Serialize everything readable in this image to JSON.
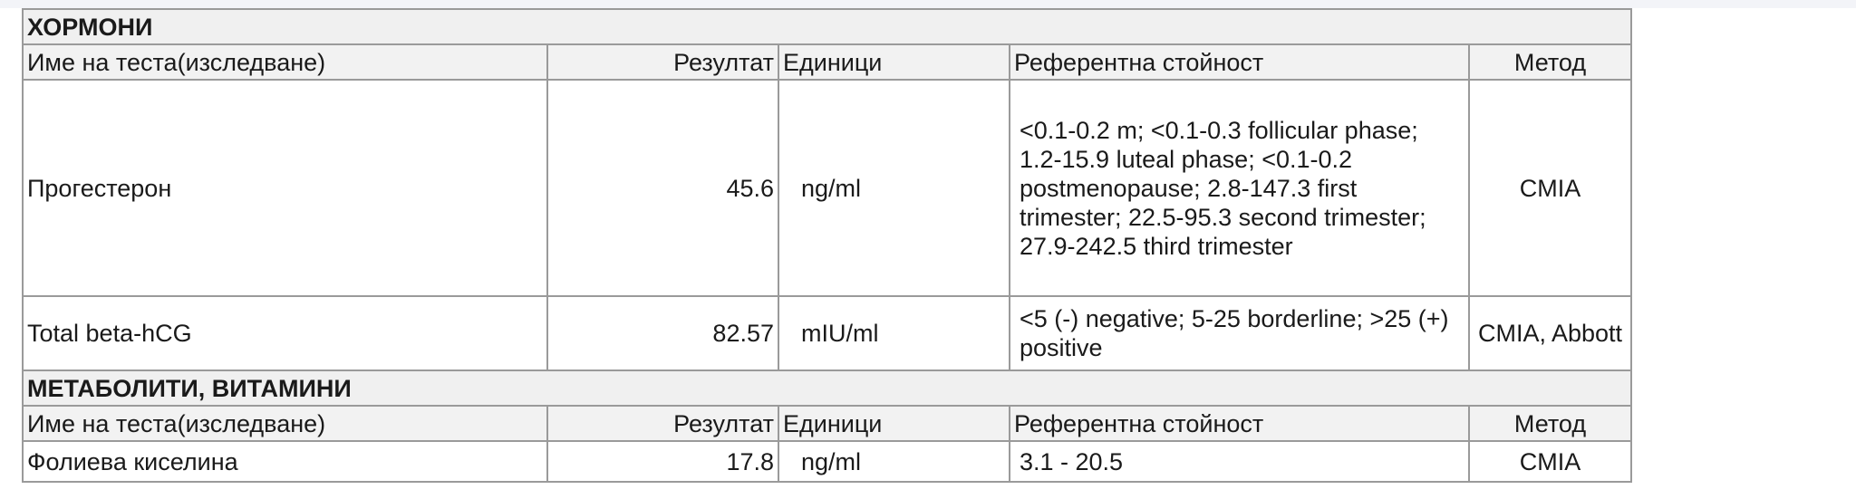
{
  "sections": [
    {
      "title": "ХОРМОНИ",
      "headers": {
        "name": "Име на теста(изследване)",
        "result": "Резултат",
        "units": "Единици",
        "reference": "Референтна стойност",
        "method": "Метод"
      },
      "rows": [
        {
          "name": "Прогестерон",
          "result": "45.6",
          "units": "ng/ml",
          "reference": "<0.1-0.2 m; <0.1-0.3 follicular phase; 1.2-15.9 luteal phase; <0.1-0.2 postmenopause; 2.8-147.3 first trimester; 22.5-95.3 second trimester; 27.9-242.5 third trimester",
          "method": "CMIA"
        },
        {
          "name": "Total beta-hCG",
          "result": "82.57",
          "units": "mIU/ml",
          "reference": "<5 (-) negative; 5-25 borderline; >25 (+) positive",
          "method": "CMIA, Abbott"
        }
      ]
    },
    {
      "title": "МЕТАБОЛИТИ, ВИТАМИНИ",
      "headers": {
        "name": "Име на теста(изследване)",
        "result": "Резултат",
        "units": "Единици",
        "reference": "Референтна стойност",
        "method": "Метод"
      },
      "rows": [
        {
          "name": "Фолиева киселина",
          "result": "17.8",
          "units": "ng/ml",
          "reference": "3.1 - 20.5",
          "method": "CMIA"
        }
      ]
    }
  ]
}
